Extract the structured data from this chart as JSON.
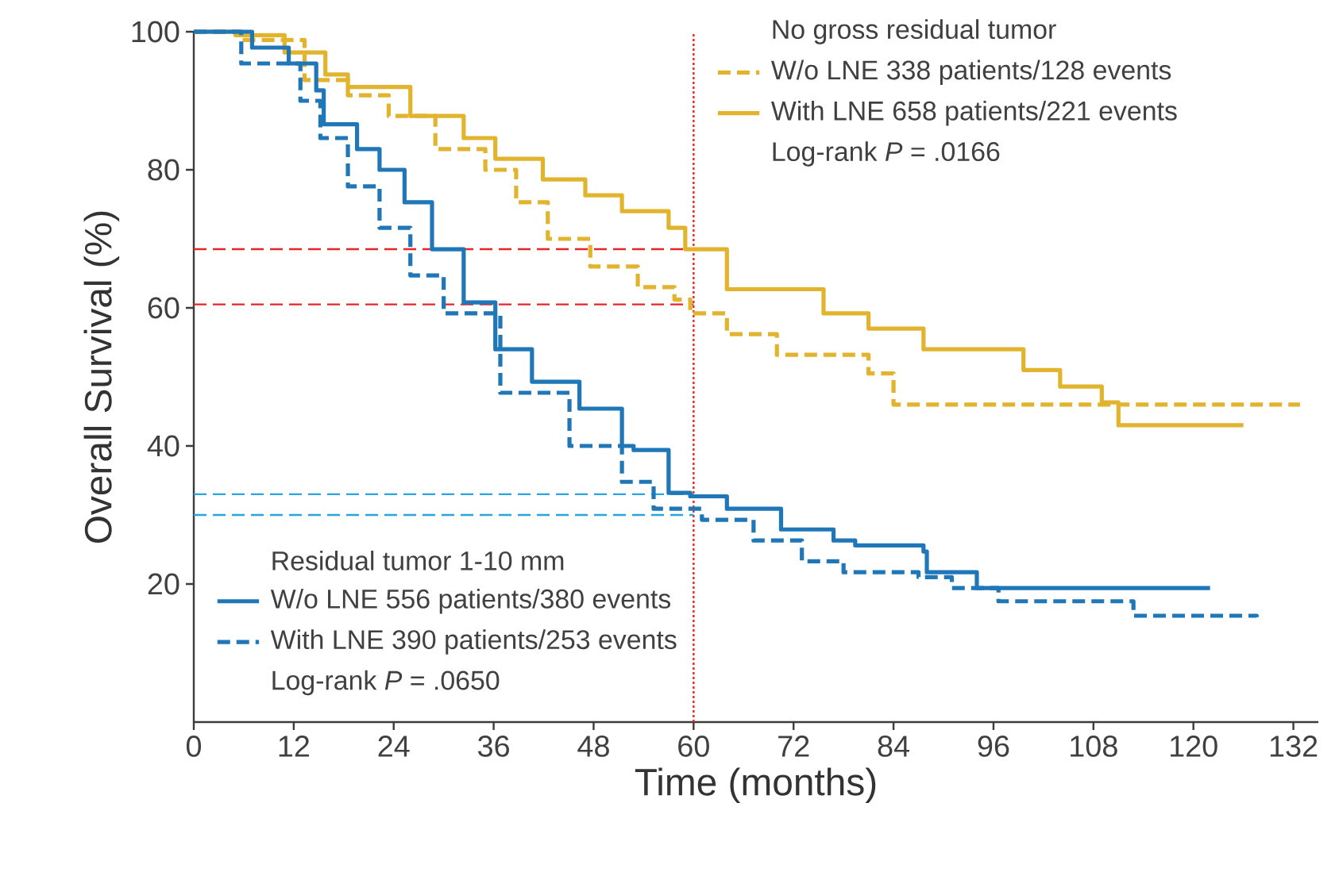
{
  "chart_data": {
    "type": "step",
    "xlabel": "Time (months)",
    "ylabel": "Overall Survival (%)",
    "xlim": [
      0,
      135
    ],
    "ylim": [
      0,
      100
    ],
    "xticks": [
      0,
      12,
      24,
      36,
      48,
      60,
      72,
      84,
      96,
      108,
      120,
      132
    ],
    "yticks": [
      20,
      40,
      60,
      80,
      100
    ],
    "legend": "top left",
    "annotations": [
      "No gross residual tumor",
      "Log-rank *P* = .0166",
      "Residual tumor 1-10 mm",
      "Log-rank *P* = .0650"
    ],
    "series": [
      {
        "name": "W/o LNE 338 patients/128 events",
        "color": "#e2b42e",
        "line_style": "dashed",
        "x": [
          0,
          5.7,
          13.3,
          18.5,
          23.4,
          29,
          35,
          38.7,
          42.5,
          47.6,
          53.3,
          57.7,
          59.6,
          64,
          70,
          81,
          84,
          132.8
        ],
        "values": [
          100,
          98.8,
          93,
          90.8,
          87.8,
          83,
          80,
          75.3,
          70,
          66,
          63,
          61.2,
          59.2,
          56.2,
          53.2,
          50.5,
          46,
          46
        ]
      },
      {
        "name": "With LNE 658 patients/221 events",
        "color": "#e2b42e",
        "line_style": "solid",
        "x": [
          0,
          5,
          10.9,
          15.8,
          18.5,
          26,
          32.4,
          36.2,
          41.9,
          47,
          51.4,
          57,
          59,
          64,
          69,
          75.6,
          81,
          87.6,
          99.6,
          104,
          109,
          111,
          126
        ],
        "values": [
          100,
          99.5,
          97,
          93.8,
          92,
          87.8,
          84.6,
          81.6,
          78.6,
          76.3,
          74,
          71.6,
          68.5,
          62.7,
          62.7,
          59.2,
          57,
          54,
          51,
          48.6,
          46.3,
          43,
          43
        ]
      },
      {
        "name": "W/o LNE 556 patients/380 events",
        "color": "#1f77b8",
        "line_style": "solid",
        "x": [
          0,
          7,
          11.4,
          14.7,
          15.6,
          19.6,
          22.3,
          25.3,
          28.6,
          32.4,
          36.2,
          40.6,
          46.3,
          51.4,
          52.8,
          57,
          59.6,
          64,
          70.5,
          76.8,
          79.4,
          87.6,
          88,
          94,
          122
        ],
        "values": [
          100,
          97.7,
          95.4,
          91.5,
          86.6,
          83,
          80,
          75.3,
          68.5,
          60.8,
          54,
          49.3,
          45.4,
          40,
          39.4,
          33.2,
          32.7,
          30.9,
          27.9,
          26.3,
          25.6,
          24.7,
          21.7,
          19.4,
          19.4
        ]
      },
      {
        "name": "With LNE 390 patients/253 events",
        "color": "#1f77b8",
        "line_style": "dashed",
        "x": [
          0,
          5.7,
          12.8,
          15.2,
          18.5,
          22.3,
          26,
          30,
          36.8,
          45.1,
          51.4,
          55.2,
          61,
          67.2,
          73,
          78,
          87,
          91,
          96.6,
          112.8,
          127.6
        ],
        "values": [
          100,
          95.4,
          90,
          84.6,
          77.6,
          71.6,
          64.7,
          59.2,
          47.7,
          40,
          34.8,
          30.9,
          29.3,
          26.3,
          23.3,
          21.7,
          21,
          19.4,
          17.5,
          15.4,
          15.2
        ]
      }
    ],
    "ref_lines": [
      {
        "axis": "x",
        "value": 60,
        "color": "#e8262a",
        "line_style": "dotted"
      },
      {
        "axis": "y",
        "value": 68.5,
        "color": "#e8262a",
        "line_style": "dashed"
      },
      {
        "axis": "y",
        "value": 60.5,
        "color": "#e8262a",
        "line_style": "dashed"
      },
      {
        "axis": "y",
        "value": 33,
        "color": "#2aa4e0",
        "line_style": "dashed"
      },
      {
        "axis": "y",
        "value": 30,
        "color": "#2aa4e0",
        "line_style": "dashed"
      }
    ]
  }
}
